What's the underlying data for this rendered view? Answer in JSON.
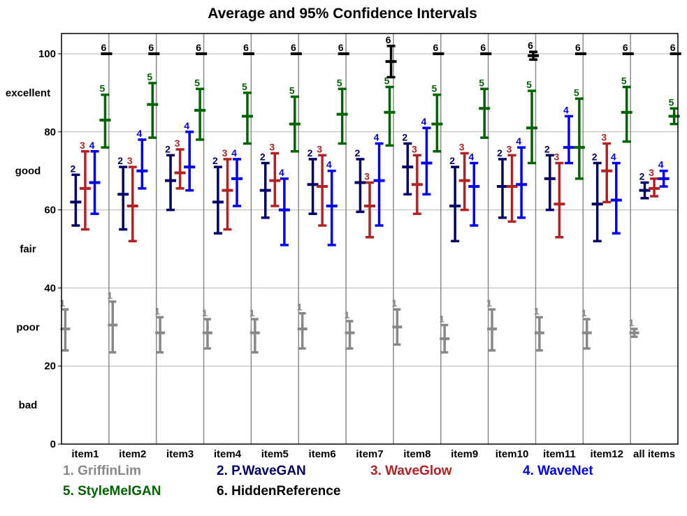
{
  "chart_data": {
    "type": "errorbar",
    "title": "Average and 95% Confidence Intervals",
    "xlabel": "",
    "ylabel": "",
    "ylim": [
      0,
      102
    ],
    "yticks": [
      0,
      20,
      40,
      60,
      80,
      100
    ],
    "quality_labels": [
      {
        "label": "bad",
        "y": 10
      },
      {
        "label": "poor",
        "y": 30
      },
      {
        "label": "fair",
        "y": 50
      },
      {
        "label": "good",
        "y": 70
      },
      {
        "label": "excellent",
        "y": 90
      }
    ],
    "categories": [
      "item1",
      "item2",
      "item3",
      "item4",
      "item5",
      "item6",
      "item7",
      "item8",
      "item9",
      "item10",
      "item11",
      "item12",
      "all items"
    ],
    "series": [
      {
        "id": "1",
        "name": "GriffinLim",
        "legend": "1. GriffinLim",
        "color": "#888888",
        "mean": [
          29.5,
          30.5,
          28.5,
          28.5,
          28.5,
          29.5,
          28.5,
          30,
          27,
          29.5,
          28.5,
          28.5,
          28.5
        ],
        "low": [
          24,
          23.5,
          23.5,
          24.5,
          23.5,
          24.5,
          24.5,
          25.5,
          23.5,
          24,
          24,
          24.5,
          27.5
        ],
        "high": [
          34.5,
          36.5,
          32.5,
          32,
          32,
          33.5,
          31.5,
          34.5,
          30.5,
          34.5,
          32.5,
          32,
          29.5
        ]
      },
      {
        "id": "2",
        "name": "P.WaveGAN",
        "legend": "2. P.WaveGAN",
        "color": "#000066",
        "mean": [
          62,
          64,
          67.5,
          62,
          65,
          66.5,
          67,
          71,
          61,
          66,
          68,
          61.5,
          65
        ],
        "low": [
          56,
          55,
          60,
          54,
          58,
          59,
          59.5,
          64,
          52,
          58,
          60,
          52,
          63
        ],
        "high": [
          69,
          71,
          74,
          71,
          72,
          73,
          73,
          77,
          71,
          73,
          74,
          72,
          67
        ]
      },
      {
        "id": "3",
        "name": "WaveGlow",
        "legend": "3. WaveGlow",
        "color": "#b22222",
        "mean": [
          65.5,
          61,
          69.5,
          65,
          67.5,
          66,
          61,
          66.5,
          67.5,
          66,
          61.5,
          70,
          65.5
        ],
        "low": [
          55,
          52,
          65.5,
          55,
          61,
          56,
          53,
          59,
          60,
          57,
          53,
          62,
          63.5
        ],
        "high": [
          75,
          71,
          75.5,
          73,
          74.5,
          74,
          67,
          74,
          74.5,
          74,
          72,
          77,
          68
        ]
      },
      {
        "id": "4",
        "name": "WaveNet",
        "legend": "4. WaveNet",
        "color": "#0000ee",
        "mean": [
          67,
          70,
          71,
          68,
          60,
          61,
          67.5,
          72,
          66,
          66.5,
          76,
          62.5,
          68
        ],
        "low": [
          59,
          65.5,
          65,
          61,
          51,
          51,
          56,
          64,
          56,
          58,
          72,
          54,
          66
        ],
        "high": [
          75,
          78,
          80,
          73,
          68,
          70,
          77,
          81,
          72,
          76,
          84,
          72,
          70
        ]
      },
      {
        "id": "5",
        "name": "StyleMelGAN",
        "legend": "5. StyleMelGAN",
        "color": "#006400",
        "mean": [
          83,
          87,
          85.5,
          84,
          82,
          84.5,
          85,
          82,
          86,
          81,
          76,
          85,
          84
        ],
        "low": [
          76,
          78.5,
          78,
          77,
          75,
          77,
          76.5,
          75,
          78.5,
          72,
          68,
          77.5,
          82
        ],
        "high": [
          89.5,
          92.5,
          91,
          90,
          89,
          91,
          91.5,
          89.5,
          91,
          90.5,
          88.5,
          91.5,
          86
        ]
      },
      {
        "id": "6",
        "name": "HiddenReference",
        "legend": "6. HiddenReference",
        "color": "#000000",
        "mean": [
          100,
          100,
          100,
          100,
          100,
          100,
          98,
          100,
          100,
          99.5,
          100,
          100,
          100
        ],
        "low": [
          100,
          100,
          100,
          100,
          100,
          100,
          94,
          100,
          100,
          98.5,
          100,
          100,
          100
        ],
        "high": [
          100,
          100,
          100,
          100,
          100,
          100,
          102,
          100,
          100,
          100.5,
          100,
          100,
          100
        ]
      }
    ],
    "grid": true,
    "legend_position": "bottom"
  }
}
